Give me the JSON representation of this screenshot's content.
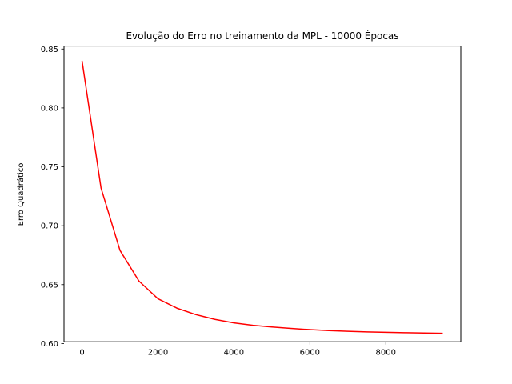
{
  "chart_data": {
    "type": "line",
    "title": "Evolução do Erro no treinamento da MPL - 10000 Épocas",
    "xlabel": "",
    "ylabel": "Erro Quadrático",
    "xlim": [
      -475,
      9975
    ],
    "ylim": [
      0.6015,
      0.8525
    ],
    "xticks": [
      0,
      2000,
      4000,
      6000,
      8000
    ],
    "xtick_labels": [
      "0",
      "2000",
      "4000",
      "6000",
      "8000"
    ],
    "yticks": [
      0.6,
      0.65,
      0.7,
      0.75,
      0.8,
      0.85
    ],
    "ytick_labels": [
      "0.60",
      "0.65",
      "0.70",
      "0.75",
      "0.80",
      "0.85"
    ],
    "grid": false,
    "series": [
      {
        "color": "#ff0000",
        "x": [
          0,
          500,
          1000,
          1500,
          2000,
          2500,
          3000,
          3500,
          4000,
          4500,
          5000,
          5500,
          6000,
          6500,
          7000,
          7500,
          8000,
          8500,
          9000,
          9500
        ],
        "y": [
          0.84,
          0.732,
          0.679,
          0.653,
          0.638,
          0.63,
          0.6245,
          0.6205,
          0.6175,
          0.6155,
          0.614,
          0.6128,
          0.6118,
          0.611,
          0.6104,
          0.6099,
          0.6095,
          0.6092,
          0.6089,
          0.6087
        ]
      }
    ]
  }
}
